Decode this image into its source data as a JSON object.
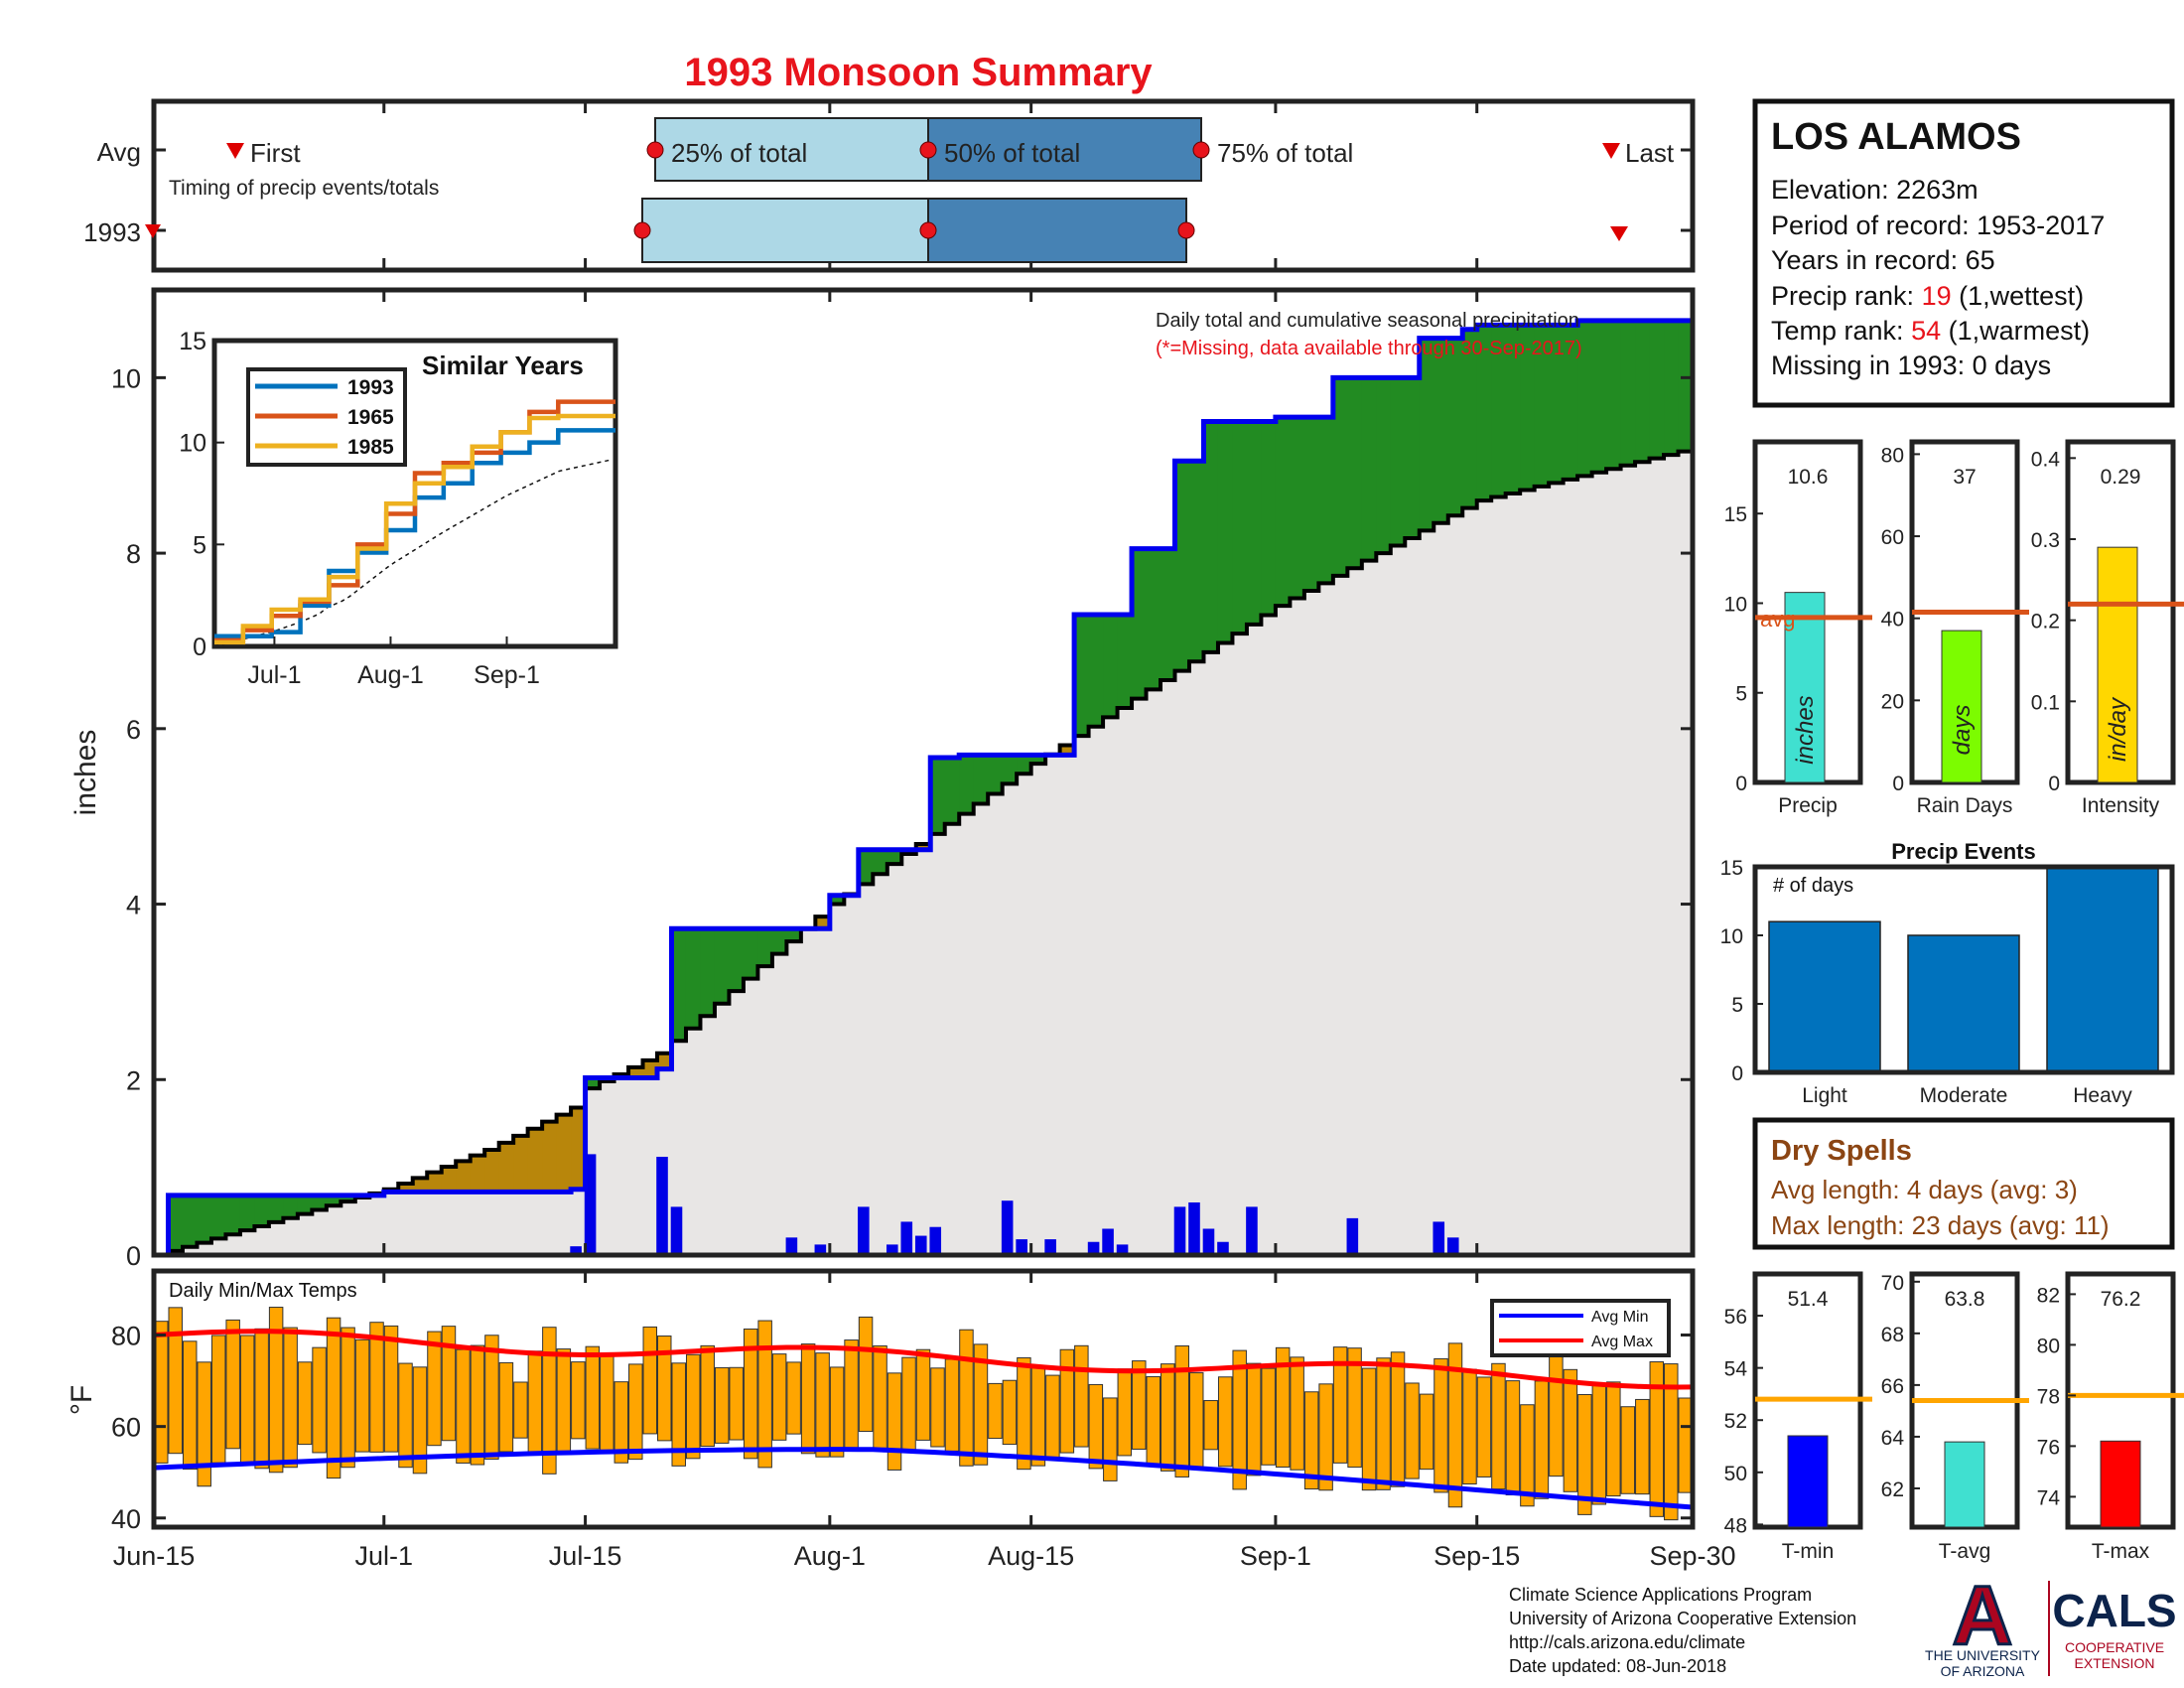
{
  "title": "1993 Monsoon Summary",
  "station": {
    "name": "LOS ALAMOS",
    "elevation_label": "Elevation: 2263m",
    "period_label": "Period of record: 1953-2017",
    "years_label": "Years in record: 65",
    "precip_rank_prefix": "Precip rank: ",
    "precip_rank_value": "19",
    "precip_rank_suffix": " (1,wettest)",
    "temp_rank_prefix": "Temp rank: ",
    "temp_rank_value": "54",
    "temp_rank_suffix": " (1,warmest)",
    "missing_label": "Missing in 1993: 0 days"
  },
  "timing": {
    "row_labels": [
      "Avg",
      "1993"
    ],
    "first_label": "First",
    "last_label": "Last",
    "pct25_label": "25% of total",
    "pct50_label": "50% of total",
    "pct75_label": "75% of total",
    "caption": "Timing of precip events/totals"
  },
  "main_chart": {
    "ylabel": "inches",
    "annotation_line1": "Daily total and cumulative seasonal precipitation",
    "annotation_line2": "(*=Missing, data available through 30-Sep-2017)"
  },
  "inset": {
    "title": "Similar Years",
    "legend": [
      "1993",
      "1965",
      "1985"
    ]
  },
  "temps": {
    "title": "Daily Min/Max Temps",
    "ylabel": "°F",
    "legend_min": "Avg Min",
    "legend_max": "Avg Max"
  },
  "x_ticks": [
    "Jun-15",
    "Jul-1",
    "Jul-15",
    "Aug-1",
    "Aug-15",
    "Sep-1",
    "Sep-15",
    "Sep-30"
  ],
  "inset_x_ticks": [
    "Jul-1",
    "Aug-1",
    "Sep-1"
  ],
  "bars_small": [
    {
      "label": "Precip",
      "value_label": "10.6",
      "unit": "inches"
    },
    {
      "label": "Rain Days",
      "value_label": "37",
      "unit": "days"
    },
    {
      "label": "Intensity",
      "value_label": "0.29",
      "unit": "in/day"
    }
  ],
  "avg_label": "avg",
  "events": {
    "title": "Precip Events",
    "ylabel_text": "# of days"
  },
  "dry_spells": {
    "title": "Dry Spells",
    "avg_line": "Avg length: 4 days (avg: 3)",
    "max_line": "Max length: 23 days (avg: 11)"
  },
  "temp_bars": [
    {
      "label": "T-min",
      "value_label": "51.4"
    },
    {
      "label": "T-avg",
      "value_label": "63.8"
    },
    {
      "label": "T-max",
      "value_label": "76.2"
    }
  ],
  "footer": {
    "line1": "Climate Science Applications Program",
    "line2": "University of Arizona Cooperative Extension",
    "line3": "http://cals.arizona.edu/climate",
    "line4": " Date updated: 08-Jun-2018",
    "ua_line1": "THE UNIVERSITY",
    "ua_line2": "OF ARIZONA",
    "cals": "CALS",
    "coop1": "COOPERATIVE",
    "coop2": "EXTENSION"
  },
  "colors": {
    "title": "#e8141c",
    "above_avg": "#228b22",
    "below_avg": "#b8860b",
    "daily_bar": "#0000e6",
    "cum_line": "#0000ee",
    "temp_bar": "#ffa500",
    "avg_max": "#ff0000",
    "avg_min": "#0000ff",
    "quartile_light": "#add8e6",
    "quartile_dark": "#4682b4",
    "precip_bar": "#40e0d0",
    "days_bar": "#7cfc00",
    "intensity_bar": "#ffd700",
    "events_bar": "#0072bd",
    "tmin_bar": "#0000ff",
    "tavg_bar": "#40e0d0",
    "tmax_bar": "#ff0000",
    "avg_line": "#d95319",
    "temp_avg_line": "#ffa500",
    "dry_spell_text": "#8b4513"
  },
  "chart_data": [
    {
      "type": "line",
      "title": "Daily total and cumulative seasonal precipitation",
      "ylabel": "inches",
      "ylim": [
        0,
        11
      ],
      "x_range": [
        "Jun-15",
        "Sep-30"
      ],
      "series": [
        {
          "name": "1993 cumulative",
          "x": [
            "Jun-15",
            "Jun-16",
            "Jul-1",
            "Jul-14",
            "Jul-15",
            "Jul-20",
            "Jul-21",
            "Aug-1",
            "Aug-3",
            "Aug-8",
            "Aug-10",
            "Aug-18",
            "Aug-22",
            "Aug-25",
            "Aug-27",
            "Sep-1",
            "Sep-5",
            "Sep-6",
            "Sep-11",
            "Sep-14",
            "Sep-15",
            "Sep-22",
            "Sep-30"
          ],
          "values": [
            0.0,
            0.68,
            0.72,
            0.75,
            2.02,
            2.12,
            3.72,
            4.1,
            4.62,
            5.67,
            5.7,
            7.3,
            8.05,
            9.05,
            9.5,
            9.55,
            10.0,
            10.0,
            10.45,
            10.55,
            10.6,
            10.65,
            10.65
          ]
        },
        {
          "name": "Average cumulative",
          "x": [
            "Jun-15",
            "Jul-1",
            "Jul-8",
            "Jul-14",
            "Jul-15",
            "Jul-20",
            "Aug-1",
            "Aug-15",
            "Sep-1",
            "Sep-15",
            "Sep-30"
          ],
          "values": [
            0.0,
            0.75,
            1.2,
            1.68,
            1.9,
            2.3,
            4.0,
            5.6,
            7.4,
            8.6,
            9.2
          ]
        }
      ],
      "daily": {
        "x": [
          "Jul-14",
          "Jul-15",
          "Jul-20",
          "Jul-21",
          "Jul-29",
          "Jul-31",
          "Aug-3",
          "Aug-5",
          "Aug-6",
          "Aug-7",
          "Aug-8",
          "Aug-13",
          "Aug-14",
          "Aug-16",
          "Aug-19",
          "Aug-20",
          "Aug-21",
          "Aug-25",
          "Aug-26",
          "Aug-27",
          "Aug-28",
          "Aug-30",
          "Sep-6",
          "Sep-12",
          "Sep-13"
        ],
        "values": [
          0.1,
          1.15,
          1.12,
          0.55,
          0.2,
          0.12,
          0.55,
          0.12,
          0.38,
          0.22,
          0.32,
          0.62,
          0.18,
          0.18,
          0.15,
          0.3,
          0.12,
          0.55,
          0.6,
          0.3,
          0.15,
          0.55,
          0.42,
          0.38,
          0.2
        ]
      }
    },
    {
      "type": "line",
      "title": "Similar Years",
      "ylim": [
        0,
        15
      ],
      "series": [
        {
          "name": "1993",
          "values": [
            0.5,
            0.5,
            0.7,
            2.0,
            3.7,
            4.6,
            5.7,
            7.3,
            8.0,
            9.0,
            9.5,
            10.0,
            10.6,
            10.6
          ]
        },
        {
          "name": "1965",
          "values": [
            0.3,
            0.8,
            1.5,
            2.2,
            3.0,
            5.0,
            6.5,
            8.5,
            9.0,
            9.5,
            10.5,
            11.5,
            12.0,
            12.0
          ]
        },
        {
          "name": "1985",
          "values": [
            0.2,
            1.0,
            1.8,
            2.3,
            3.4,
            4.8,
            7.0,
            8.0,
            8.8,
            9.8,
            10.5,
            11.2,
            11.3,
            11.3
          ]
        }
      ]
    },
    {
      "type": "bar",
      "title": "Daily Min/Max Temps",
      "ylabel": "°F",
      "ylim": [
        38,
        94
      ],
      "note": "Daily bars span min to max temperature; avg max ~80→70, avg min ~51→45"
    },
    {
      "type": "bar",
      "categories": [
        "Precip",
        "Rain Days",
        "Intensity"
      ],
      "values": [
        10.6,
        37,
        0.29
      ],
      "averages": [
        9.2,
        41.5,
        0.22
      ]
    },
    {
      "type": "bar",
      "title": "Precip Events",
      "categories": [
        "Light",
        "Moderate",
        "Heavy"
      ],
      "values": [
        11,
        10,
        15
      ],
      "ylim": [
        0,
        15
      ]
    },
    {
      "type": "bar",
      "categories": [
        "T-min",
        "T-avg",
        "T-max"
      ],
      "values": [
        51.4,
        63.8,
        76.2
      ],
      "averages": [
        52.8,
        65.4,
        78.0
      ]
    }
  ]
}
